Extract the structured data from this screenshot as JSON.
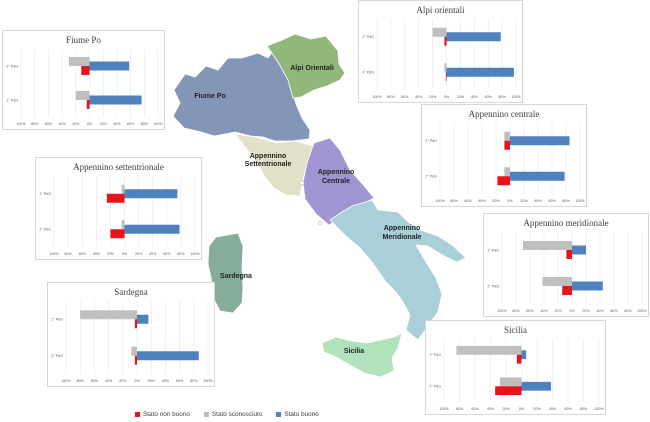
{
  "colors": {
    "non_buono": "#e8141b",
    "sconosciuto": "#bfbfbf",
    "buono": "#4f81bd"
  },
  "map": {
    "regions": [
      {
        "id": "fiume-po",
        "label": "Fiume Po",
        "color": "#8496b8"
      },
      {
        "id": "alpi-orientali",
        "label": "Alpi Orientali",
        "color": "#91b87a"
      },
      {
        "id": "appennino-settentrionale",
        "label": "Appennino Settentrionale",
        "color": "#e2e1c8"
      },
      {
        "id": "appennino-centrale",
        "label": "Appennino Centrale",
        "color": "#a095d0"
      },
      {
        "id": "appennino-meridionale",
        "label": "Appennino Meridionale",
        "color": "#a9cfd9"
      },
      {
        "id": "sardegna",
        "label": "Sardegna",
        "color": "#85ad99"
      },
      {
        "id": "sicilia",
        "label": "Sicilia",
        "color": "#b0e3bb"
      }
    ]
  },
  "legend": {
    "items": [
      {
        "label": "Stato non buono",
        "color": "#e8141b"
      },
      {
        "label": "Stato sconosciuto",
        "color": "#bfbfbf"
      },
      {
        "label": "Stato buono",
        "color": "#4f81bd"
      }
    ]
  },
  "chart_data": [
    {
      "type": "bar",
      "title": "Fiume Po",
      "categories": [
        "2° PdG",
        "1° PdG"
      ],
      "xlim": [
        -100,
        100
      ],
      "xticks": [
        "100%",
        "80%",
        "60%",
        "40%",
        "20%",
        "0%",
        "20%",
        "40%",
        "60%",
        "80%",
        "100%"
      ],
      "series": [
        {
          "name": "Stato non buono",
          "values": [
            -12,
            -4
          ]
        },
        {
          "name": "Stato sconosciuto",
          "values": [
            -30,
            -20
          ]
        },
        {
          "name": "Stato buono",
          "values": [
            58,
            76
          ]
        }
      ]
    },
    {
      "type": "bar",
      "title": "Alpi orientali",
      "categories": [
        "2° PdG",
        "1° PdG"
      ],
      "xlim": [
        -100,
        100
      ],
      "xticks": [
        "100%",
        "80%",
        "60%",
        "40%",
        "20%",
        "0%",
        "20%",
        "40%",
        "60%",
        "80%",
        "100%"
      ],
      "series": [
        {
          "name": "Stato non buono",
          "values": [
            -3,
            -1
          ]
        },
        {
          "name": "Stato sconosciuto",
          "values": [
            -20,
            -3
          ]
        },
        {
          "name": "Stato buono",
          "values": [
            78,
            97
          ]
        }
      ]
    },
    {
      "type": "bar",
      "title": "Appennino centrale",
      "categories": [
        "2° PdG",
        "1° PdG"
      ],
      "xlim": [
        -100,
        100
      ],
      "xticks": [
        "100%",
        "80%",
        "60%",
        "40%",
        "20%",
        "0%",
        "20%",
        "40%",
        "60%",
        "80%",
        "100%"
      ],
      "series": [
        {
          "name": "Stato non buono",
          "values": [
            -8,
            -18
          ]
        },
        {
          "name": "Stato sconosciuto",
          "values": [
            -8,
            -8
          ]
        },
        {
          "name": "Stato buono",
          "values": [
            85,
            78
          ]
        }
      ]
    },
    {
      "type": "bar",
      "title": "Appennino settentrionale",
      "categories": [
        "1° PdG",
        "2° PdG"
      ],
      "xlim": [
        -100,
        100
      ],
      "xticks": [
        "100%",
        "80%",
        "60%",
        "40%",
        "20%",
        "0%",
        "20%",
        "40%",
        "60%",
        "80%",
        "100%"
      ],
      "series": [
        {
          "name": "Stato non buono",
          "values": [
            -25,
            -20
          ]
        },
        {
          "name": "Stato sconosciuto",
          "values": [
            -4,
            -4
          ]
        },
        {
          "name": "Stato buono",
          "values": [
            75,
            78
          ]
        }
      ]
    },
    {
      "type": "bar",
      "title": "Appennino meridionale",
      "categories": [
        "1° PdG",
        "2° PdG"
      ],
      "xlim": [
        -100,
        100
      ],
      "xticks": [
        "100%",
        "80%",
        "60%",
        "40%",
        "20%",
        "0%",
        "20%",
        "40%",
        "60%",
        "80%",
        "100%"
      ],
      "series": [
        {
          "name": "Stato non buono",
          "values": [
            -8,
            -14
          ]
        },
        {
          "name": "Stato sconosciuto",
          "values": [
            -70,
            -42
          ]
        },
        {
          "name": "Stato buono",
          "values": [
            20,
            44
          ]
        }
      ]
    },
    {
      "type": "bar",
      "title": "Sardegna",
      "categories": [
        "1° PdG",
        "2° PdG"
      ],
      "xlim": [
        -100,
        100
      ],
      "xticks": [
        "100%",
        "80%",
        "60%",
        "40%",
        "20%",
        "0%",
        "20%",
        "40%",
        "60%",
        "80%",
        "100%"
      ],
      "series": [
        {
          "name": "Stato non buono",
          "values": [
            -3,
            -3
          ]
        },
        {
          "name": "Stato sconosciuto",
          "values": [
            -80,
            -8
          ]
        },
        {
          "name": "Stato buono",
          "values": [
            16,
            87
          ]
        }
      ]
    },
    {
      "type": "bar",
      "title": "Sicilia",
      "categories": [
        "1° PdG",
        "2° PdG"
      ],
      "xlim": [
        -100,
        100
      ],
      "xticks": [
        "100%",
        "80%",
        "60%",
        "40%",
        "20%",
        "0%",
        "20%",
        "40%",
        "60%",
        "80%",
        "100%"
      ],
      "series": [
        {
          "name": "Stato non buono",
          "values": [
            -6,
            -34
          ]
        },
        {
          "name": "Stato sconosciuto",
          "values": [
            -84,
            -28
          ]
        },
        {
          "name": "Stato buono",
          "values": [
            6,
            38
          ]
        }
      ]
    }
  ]
}
